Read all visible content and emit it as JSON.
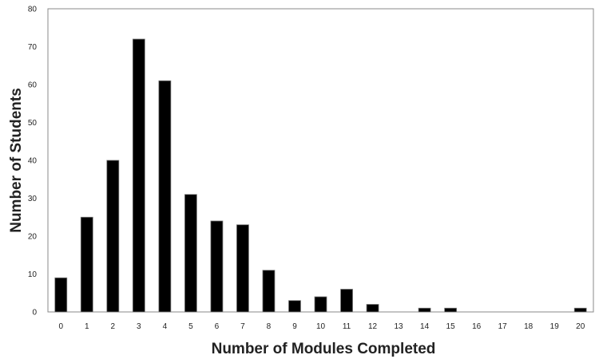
{
  "chart_data": {
    "type": "bar",
    "categories": [
      "0",
      "1",
      "2",
      "3",
      "4",
      "5",
      "6",
      "7",
      "8",
      "9",
      "10",
      "11",
      "12",
      "13",
      "14",
      "15",
      "16",
      "17",
      "18",
      "19",
      "20"
    ],
    "values": [
      9,
      25,
      40,
      72,
      61,
      31,
      24,
      23,
      11,
      3,
      4,
      6,
      2,
      0,
      1,
      1,
      0,
      0,
      0,
      0,
      1
    ],
    "title": "",
    "xlabel": "Number of Modules Completed",
    "ylabel": "Number of Students",
    "ylim": [
      0,
      80
    ],
    "yticks": [
      "0",
      "10",
      "20",
      "30",
      "40",
      "50",
      "60",
      "70",
      "80"
    ],
    "grid": false,
    "legend": "none",
    "colors": {
      "bar": "#000000",
      "bar_edge": "#777777",
      "axis": "#888888"
    }
  }
}
